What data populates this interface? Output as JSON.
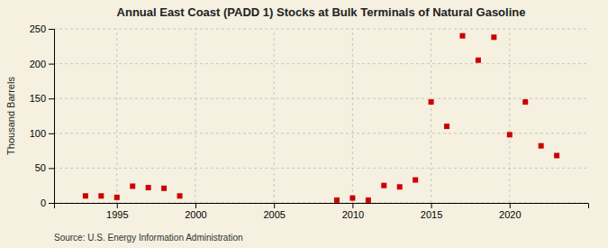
{
  "chart_data": {
    "type": "scatter",
    "title": "Annual East Coast (PADD 1) Stocks at Bulk Terminals of Natural Gasoline",
    "ylabel": "Thousand Barrels",
    "annotation": "Source: U.S. Energy Information Administration",
    "x": [
      1993,
      1994,
      1995,
      1996,
      1997,
      1998,
      1999,
      2009,
      2010,
      2011,
      2012,
      2013,
      2014,
      2015,
      2016,
      2017,
      2018,
      2019,
      2020,
      2021,
      2022,
      2023
    ],
    "values": [
      10,
      10,
      8,
      24,
      22,
      21,
      10,
      4,
      7,
      4,
      25,
      23,
      33,
      145,
      110,
      240,
      205,
      238,
      98,
      145,
      82,
      68
    ],
    "color": "#cc0000",
    "marker": "square",
    "xlim": [
      1991,
      2025
    ],
    "ylim": [
      0,
      250
    ],
    "xticks": [
      1995,
      2000,
      2005,
      2010,
      2015,
      2020
    ],
    "yticks": [
      0,
      50,
      100,
      150,
      200,
      250
    ],
    "grid": true
  }
}
